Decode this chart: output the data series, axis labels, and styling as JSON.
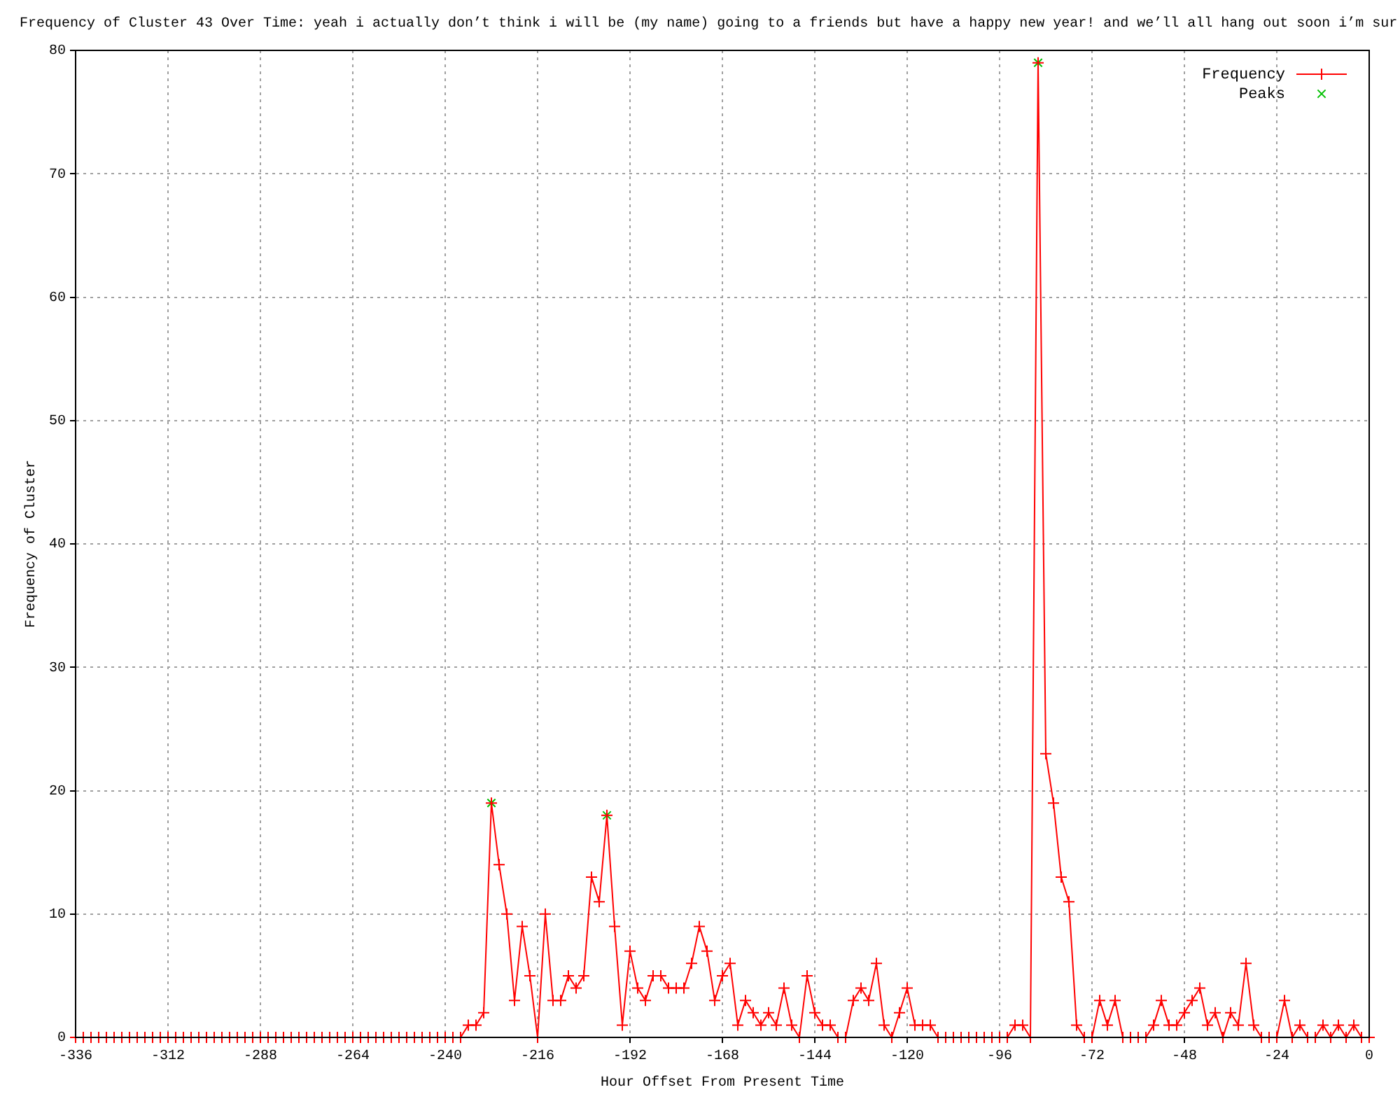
{
  "chart_data": {
    "type": "line",
    "title": "Frequency of Cluster 43 Over Time: yeah i actually don’t think i will be (my name) going to a friends but have a happy new year! and we’ll all hang out soon i’m sur",
    "xlabel": "Hour Offset From Present Time",
    "ylabel": "Frequency of Cluster",
    "x": [
      -336,
      -334,
      -332,
      -330,
      -328,
      -326,
      -324,
      -322,
      -320,
      -318,
      -316,
      -314,
      -312,
      -310,
      -308,
      -306,
      -304,
      -302,
      -300,
      -298,
      -296,
      -294,
      -292,
      -290,
      -288,
      -286,
      -284,
      -282,
      -280,
      -278,
      -276,
      -274,
      -272,
      -270,
      -268,
      -266,
      -264,
      -262,
      -260,
      -258,
      -256,
      -254,
      -252,
      -250,
      -248,
      -246,
      -244,
      -242,
      -240,
      -238,
      -236,
      -234,
      -232,
      -230,
      -228,
      -226,
      -224,
      -222,
      -220,
      -218,
      -216,
      -214,
      -212,
      -210,
      -208,
      -206,
      -204,
      -202,
      -200,
      -198,
      -196,
      -194,
      -192,
      -190,
      -188,
      -186,
      -184,
      -182,
      -180,
      -178,
      -176,
      -174,
      -172,
      -170,
      -168,
      -166,
      -164,
      -162,
      -160,
      -158,
      -156,
      -154,
      -152,
      -150,
      -148,
      -146,
      -144,
      -142,
      -140,
      -138,
      -136,
      -134,
      -132,
      -130,
      -128,
      -126,
      -124,
      -122,
      -120,
      -118,
      -116,
      -114,
      -112,
      -110,
      -108,
      -106,
      -104,
      -102,
      -100,
      -98,
      -96,
      -94,
      -92,
      -90,
      -88,
      -86,
      -84,
      -82,
      -80,
      -78,
      -76,
      -74,
      -72,
      -70,
      -68,
      -66,
      -64,
      -62,
      -60,
      -58,
      -56,
      -54,
      -52,
      -50,
      -48,
      -46,
      -44,
      -42,
      -40,
      -38,
      -36,
      -34,
      -32,
      -30,
      -28,
      -26,
      -24,
      -22,
      -20,
      -18,
      -16,
      -14,
      -12,
      -10,
      -8,
      -6,
      -4,
      -2,
      0
    ],
    "series": [
      {
        "name": "Frequency",
        "color": "#ff0000",
        "marker": "cross",
        "values": [
          0,
          0,
          0,
          0,
          0,
          0,
          0,
          0,
          0,
          0,
          0,
          0,
          0,
          0,
          0,
          0,
          0,
          0,
          0,
          0,
          0,
          0,
          0,
          0,
          0,
          0,
          0,
          0,
          0,
          0,
          0,
          0,
          0,
          0,
          0,
          0,
          0,
          0,
          0,
          0,
          0,
          0,
          0,
          0,
          0,
          0,
          0,
          0,
          0,
          0,
          0,
          1,
          1,
          2,
          19,
          14,
          10,
          3,
          9,
          5,
          0,
          10,
          3,
          3,
          5,
          4,
          5,
          13,
          11,
          18,
          9,
          1,
          7,
          4,
          3,
          5,
          5,
          4,
          4,
          4,
          6,
          9,
          7,
          3,
          5,
          6,
          1,
          3,
          2,
          1,
          2,
          1,
          4,
          1,
          0,
          5,
          2,
          1,
          1,
          0,
          0,
          3,
          4,
          3,
          6,
          1,
          0,
          2,
          4,
          1,
          1,
          1,
          0,
          0,
          0,
          0,
          0,
          0,
          0,
          0,
          0,
          0,
          1,
          1,
          0,
          79,
          23,
          19,
          13,
          11,
          1,
          0,
          0,
          3,
          1,
          3,
          0,
          0,
          0,
          0,
          1,
          3,
          1,
          1,
          2,
          3,
          4,
          1,
          2,
          0,
          2,
          1,
          6,
          1,
          0,
          0,
          0,
          3,
          0,
          1,
          0,
          0,
          1,
          0,
          1,
          0,
          1,
          0,
          0
        ]
      },
      {
        "name": "Peaks",
        "type": "scatter",
        "color": "#00c000",
        "marker": "cross",
        "x": [
          -228,
          -198,
          -86
        ],
        "values": [
          19,
          18,
          79
        ]
      }
    ],
    "xlim": [
      -336,
      0
    ],
    "xticks": [
      -336,
      -312,
      -288,
      -264,
      -240,
      -216,
      -192,
      -168,
      -144,
      -120,
      -96,
      -72,
      -48,
      -24,
      0
    ],
    "ylim": [
      0,
      80
    ],
    "yticks": [
      0,
      10,
      20,
      30,
      40,
      50,
      60,
      70,
      80
    ],
    "grid": true,
    "legend": "top right"
  }
}
